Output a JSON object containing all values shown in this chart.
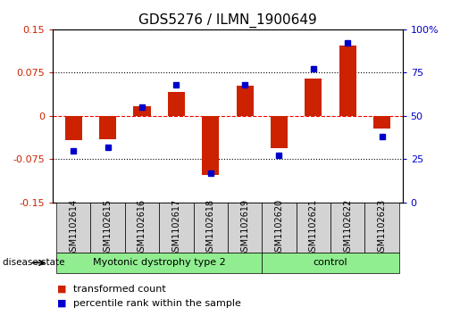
{
  "title": "GDS5276 / ILMN_1900649",
  "samples": [
    "GSM1102614",
    "GSM1102615",
    "GSM1102616",
    "GSM1102617",
    "GSM1102618",
    "GSM1102619",
    "GSM1102620",
    "GSM1102621",
    "GSM1102622",
    "GSM1102623"
  ],
  "transformed_count": [
    -0.042,
    -0.04,
    0.016,
    0.042,
    -0.102,
    0.052,
    -0.056,
    0.065,
    0.122,
    -0.022
  ],
  "percentile_rank": [
    30,
    32,
    55,
    68,
    17,
    68,
    27,
    77,
    92,
    38
  ],
  "bar_color": "#cc2200",
  "marker_color": "#0000cc",
  "ylim_left": [
    -0.15,
    0.15
  ],
  "ylim_right": [
    0,
    100
  ],
  "yticks_left": [
    -0.15,
    -0.075,
    0,
    0.075,
    0.15
  ],
  "yticks_right": [
    0,
    25,
    50,
    75,
    100
  ],
  "ytick_labels_left": [
    "-0.15",
    "-0.075",
    "0",
    "0.075",
    "0.15"
  ],
  "ytick_labels_right": [
    "0",
    "25",
    "50",
    "75",
    "100%"
  ],
  "hlines": [
    -0.075,
    0,
    0.075
  ],
  "hline_colors": [
    "black",
    "red",
    "black"
  ],
  "disease_groups": [
    {
      "label": "Myotonic dystrophy type 2",
      "start": 0,
      "end": 6,
      "color": "#90ee90"
    },
    {
      "label": "control",
      "start": 6,
      "end": 10,
      "color": "#90ee90"
    }
  ],
  "disease_label": "disease state",
  "legend_items": [
    {
      "label": "transformed count",
      "color": "#cc2200"
    },
    {
      "label": "percentile rank within the sample",
      "color": "#0000cc"
    }
  ],
  "bar_width": 0.5,
  "title_fontsize": 11,
  "tick_fontsize": 8,
  "sample_fontsize": 7,
  "group_fontsize": 8,
  "legend_fontsize": 8,
  "bg_color": "#ffffff",
  "sample_box_color": "#d3d3d3",
  "n_samples": 10
}
